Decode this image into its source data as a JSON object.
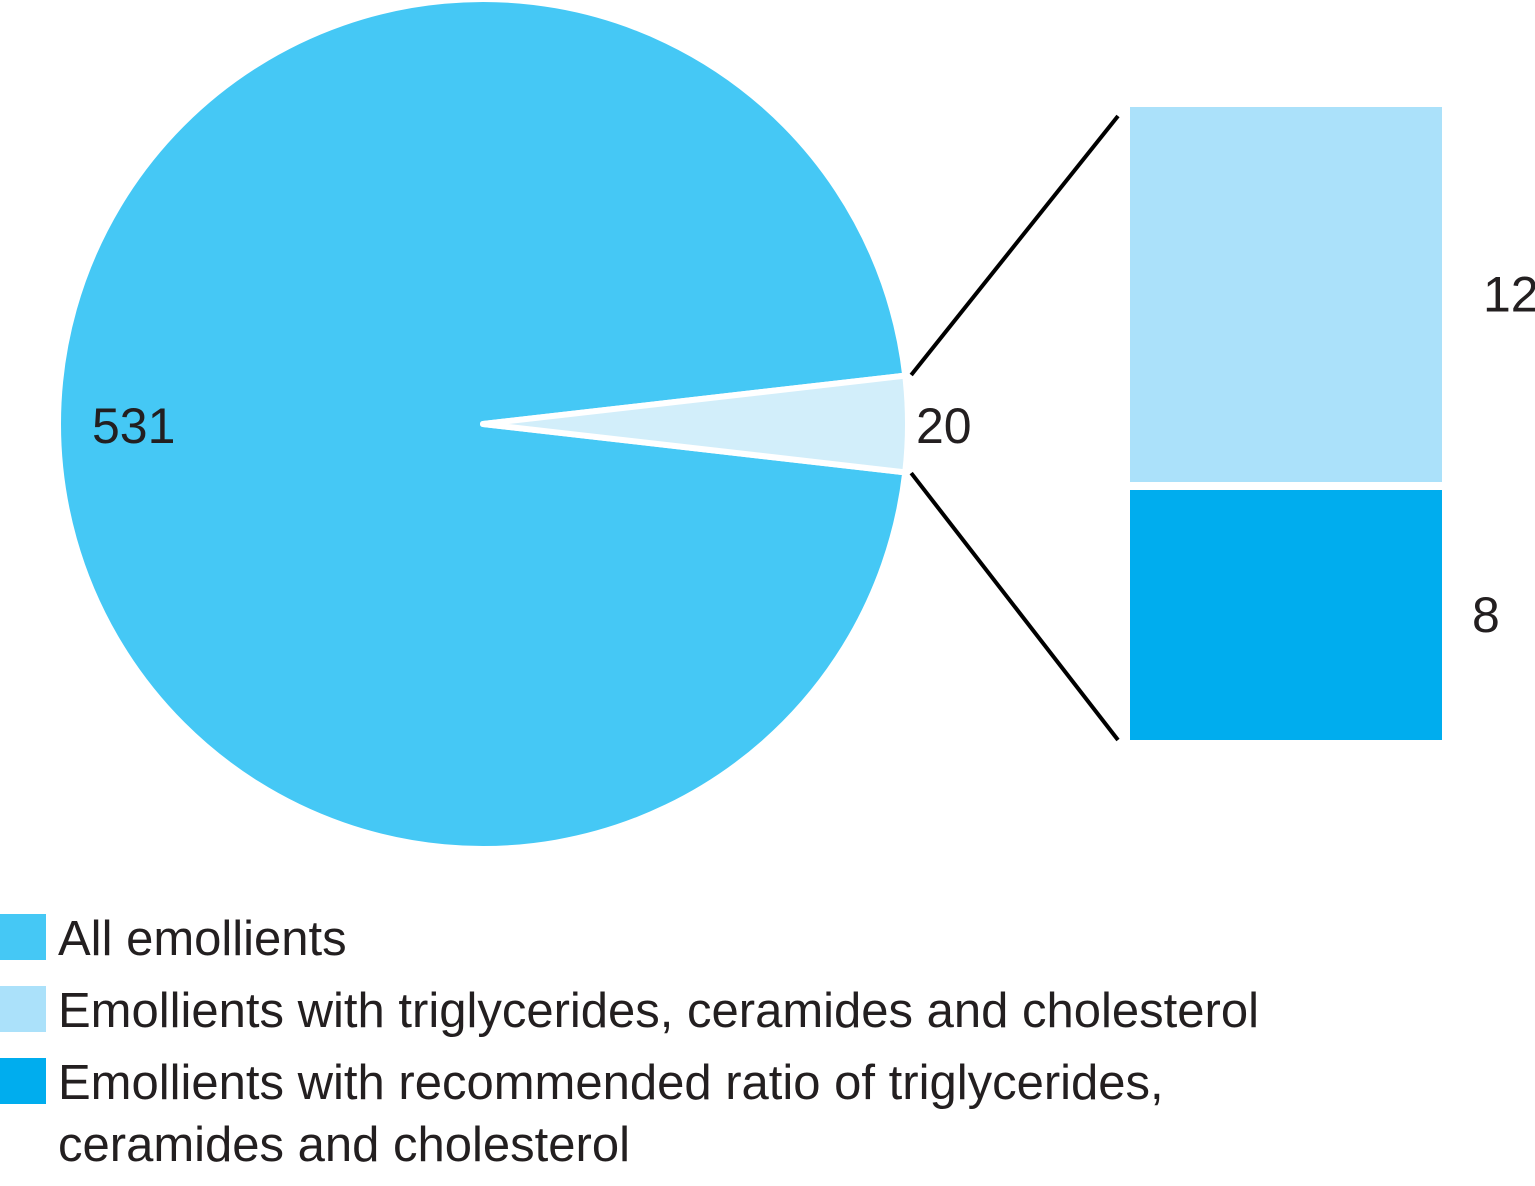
{
  "chart_data": {
    "type": "pie",
    "pie": {
      "slices": [
        {
          "series": "All emollients",
          "value": 531,
          "label": "531",
          "color": "#45c8f5"
        },
        {
          "series": "Emollients with triglycerides, ceramides and cholesterol",
          "value": 20,
          "label": "20",
          "color": "#d2eefa"
        }
      ]
    },
    "breakdown_bar": {
      "of_slice": "20",
      "segments": [
        {
          "series": "Emollients with triglycerides, ceramides and cholesterol",
          "value": 12,
          "label": "12",
          "color": "#abe1fa"
        },
        {
          "series": "Emollients with recommended ratio of triglycerides, ceramides and cholesterol",
          "value": 8,
          "label": "8",
          "color": "#00adee"
        }
      ]
    },
    "legend": [
      {
        "label": "All emollients",
        "color": "#45c8f5"
      },
      {
        "label": "Emollients with triglycerides, ceramides and cholesterol",
        "color": "#abe1fa"
      },
      {
        "label": "Emollients with recommended ratio of triglycerides, ceramides and cholesterol",
        "color": "#00adee"
      }
    ],
    "legend_position": "bottom-left"
  }
}
